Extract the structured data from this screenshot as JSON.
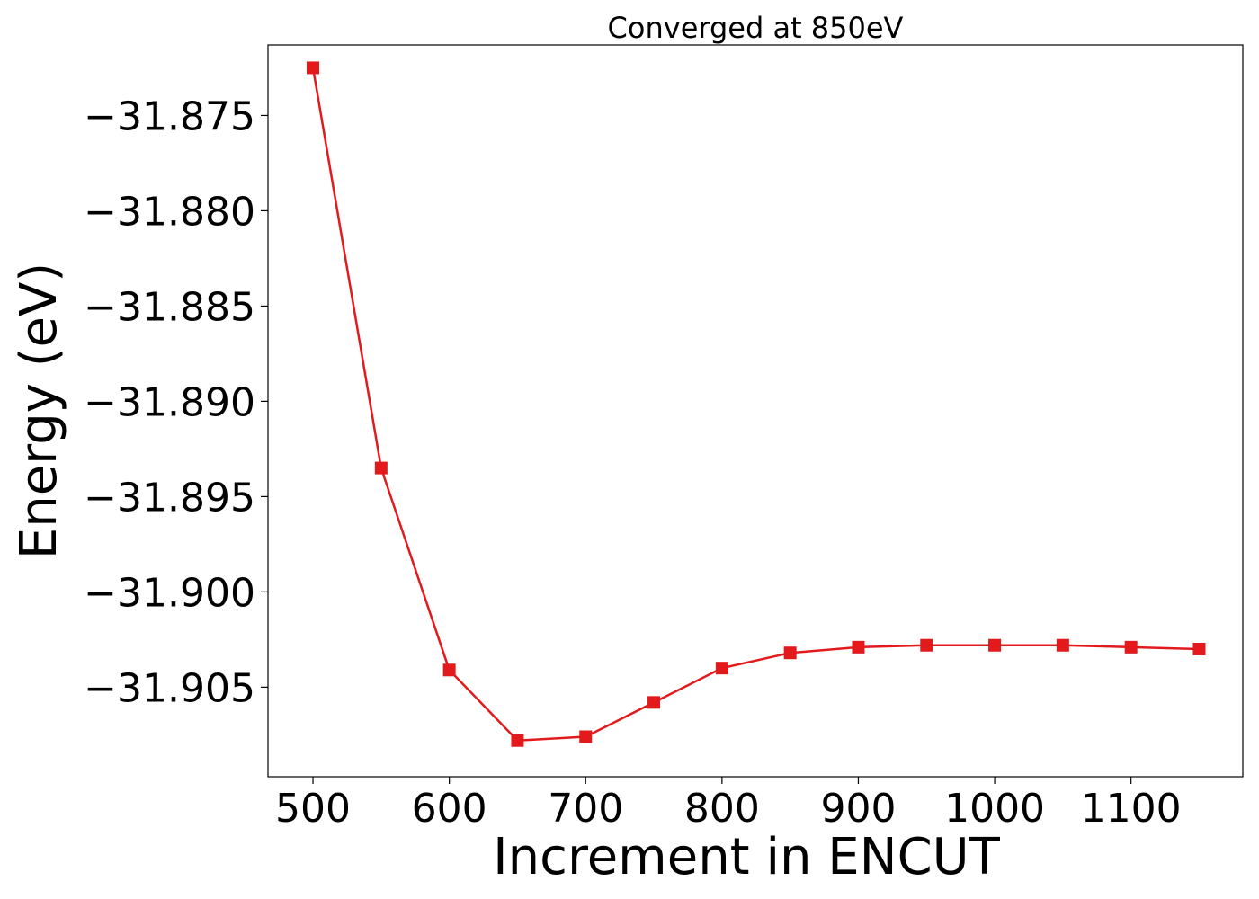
{
  "chart_data": {
    "type": "line",
    "title": "Converged at 850eV",
    "xlabel": "Increment in ENCUT",
    "ylabel": "Energy (eV)",
    "xlim": [
      467,
      1182
    ],
    "ylim": [
      -31.9097,
      -31.8713
    ],
    "x_ticks": [
      500,
      600,
      700,
      800,
      900,
      1000,
      1100
    ],
    "x_tick_labels": [
      "500",
      "600",
      "700",
      "800",
      "900",
      "1000",
      "1100"
    ],
    "y_ticks": [
      -31.875,
      -31.88,
      -31.885,
      -31.89,
      -31.895,
      -31.9,
      -31.905
    ],
    "y_tick_labels": [
      "−31.875",
      "−31.880",
      "−31.885",
      "−31.890",
      "−31.895",
      "−31.900",
      "−31.905"
    ],
    "grid": false,
    "series": [
      {
        "color": "#e31a1c",
        "marker": "square",
        "x": [
          500,
          550,
          600,
          650,
          700,
          750,
          800,
          850,
          900,
          950,
          1000,
          1050,
          1100,
          1150
        ],
        "y": [
          -31.8725,
          -31.8935,
          -31.9041,
          -31.9078,
          -31.9076,
          -31.9058,
          -31.904,
          -31.9032,
          -31.9029,
          -31.9028,
          -31.9028,
          -31.9028,
          -31.9029,
          -31.903
        ]
      }
    ]
  }
}
